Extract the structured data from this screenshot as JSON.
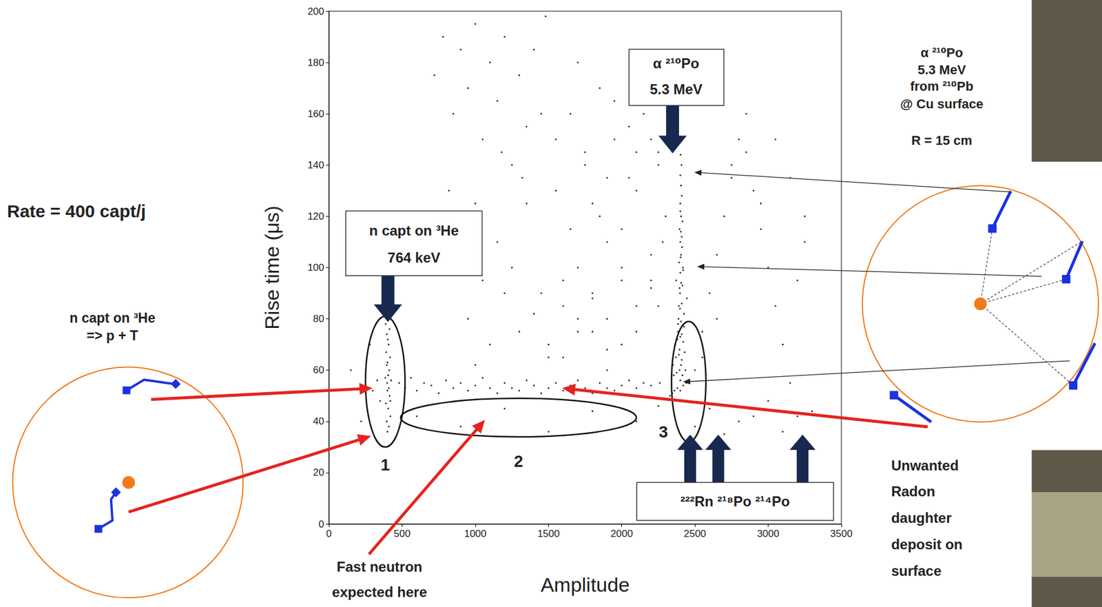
{
  "chart_data": {
    "type": "scatter",
    "x_label": "Amplitude",
    "y_label": "Rise time (μs)",
    "xlim": [
      0,
      3500
    ],
    "xticks": [
      0,
      500,
      1000,
      1500,
      2000,
      2500,
      3000,
      3500
    ],
    "ylim": [
      0,
      200
    ],
    "yticks": [
      0,
      20,
      40,
      60,
      80,
      100,
      120,
      140,
      160,
      180,
      200
    ],
    "grid": false,
    "color": "#000000",
    "marker": "dot",
    "x": [
      400,
      410,
      395,
      420,
      405,
      390,
      415,
      400,
      410,
      398,
      425,
      385,
      405,
      412,
      395,
      400,
      418,
      392,
      408,
      402,
      396,
      414,
      388,
      420,
      250,
      300,
      330,
      480,
      520,
      560,
      600,
      650,
      700,
      750,
      800,
      850,
      900,
      950,
      1000,
      1050,
      1100,
      1150,
      1200,
      1250,
      1300,
      1350,
      1400,
      1450,
      1500,
      1550,
      1600,
      1650,
      1700,
      1750,
      1800,
      1850,
      1900,
      1950,
      2000,
      2050,
      2100,
      2150,
      2200,
      2260,
      2330,
      2345,
      2360,
      2380,
      2400,
      2420,
      2440,
      2355,
      2375,
      2395,
      2415,
      2435,
      2370,
      2390,
      2410,
      2430,
      2380,
      2400,
      2420,
      2385,
      2405,
      2425,
      2390,
      2410,
      2395,
      2415,
      2400,
      2420,
      2405,
      2400,
      2410,
      2395,
      2415,
      2405,
      2400,
      2410,
      2405,
      2400,
      2408,
      2402,
      2350,
      2365,
      2385,
      2425,
      2445,
      2372,
      2392,
      2412,
      2388,
      2398,
      2418,
      2395,
      2405,
      2400,
      2410,
      2398,
      2406,
      2402,
      2404,
      2400,
      950,
      1050,
      1150,
      1250,
      1350,
      1450,
      1550,
      1650,
      1750,
      1850,
      1950,
      2050,
      2150,
      2250,
      1500,
      1600,
      1700,
      1800,
      1900,
      2000,
      2100,
      2200,
      2300,
      1550,
      1650,
      1750,
      1850,
      1950,
      2050,
      2150,
      2250,
      1600,
      1700,
      1800,
      1900,
      2000,
      2100,
      2200,
      1700,
      1800,
      1900,
      2000,
      2100,
      2200,
      2500,
      2550,
      2600,
      2650,
      2700,
      2750,
      2800,
      2850,
      2900,
      2950,
      3000,
      3050,
      3100,
      3150,
      3200,
      3250,
      2550,
      2650,
      2750,
      2850,
      2950,
      3050,
      3150,
      3250,
      2600,
      2800,
      3000,
      3200,
      720,
      780,
      850,
      900,
      950,
      1000,
      1050,
      1100,
      1150,
      1200,
      1250,
      1300,
      1350,
      1400,
      1450,
      820,
      1000,
      1180,
      1320,
      1480,
      220,
      280,
      600,
      900,
      1200,
      1500,
      1800,
      2100,
      2250,
      2500,
      2700,
      2900,
      3100,
      3300,
      150,
      350,
      1100,
      1300,
      1500,
      1700,
      1900,
      2100,
      2250,
      1200,
      1400,
      1600,
      1800,
      2000,
      2200,
      2280,
      1000,
      1900
    ],
    "values": [
      36,
      38,
      40,
      42,
      45,
      47,
      50,
      52,
      53,
      55,
      56,
      57,
      58,
      60,
      62,
      63,
      65,
      67,
      70,
      72,
      74,
      76,
      78,
      48,
      54,
      52,
      56,
      55,
      53,
      57,
      52,
      55,
      54,
      51,
      56,
      53,
      55,
      52,
      54,
      57,
      53,
      51,
      55,
      53,
      52,
      56,
      54,
      51,
      53,
      55,
      52,
      54,
      56,
      53,
      51,
      55,
      53,
      52,
      54,
      56,
      53,
      55,
      54,
      55,
      50,
      51,
      52,
      53,
      52,
      54,
      55,
      58,
      59,
      60,
      58,
      60,
      65,
      66,
      64,
      67,
      72,
      73,
      71,
      78,
      79,
      77,
      85,
      86,
      92,
      93,
      98,
      99,
      105,
      110,
      112,
      115,
      118,
      120,
      125,
      128,
      132,
      136,
      140,
      144,
      62,
      70,
      75,
      82,
      88,
      95,
      102,
      108,
      80,
      90,
      100,
      68,
      62,
      56,
      74,
      84,
      94,
      104,
      114,
      122,
      80,
      95,
      110,
      100,
      125,
      90,
      130,
      115,
      140,
      120,
      150,
      135,
      160,
      145,
      70,
      85,
      100,
      75,
      110,
      95,
      130,
      105,
      120,
      150,
      160,
      145,
      170,
      165,
      155,
      175,
      140,
      65,
      75,
      90,
      80,
      70,
      85,
      95,
      180,
      125,
      135,
      115,
      145,
      150,
      60,
      75,
      90,
      105,
      120,
      135,
      150,
      145,
      130,
      115,
      100,
      85,
      70,
      55,
      95,
      110,
      65,
      80,
      140,
      160,
      125,
      150,
      135,
      120,
      45,
      40,
      48,
      42,
      175,
      190,
      160,
      185,
      170,
      195,
      150,
      180,
      165,
      190,
      140,
      175,
      155,
      185,
      160,
      130,
      125,
      145,
      135,
      198,
      40,
      70,
      42,
      38,
      45,
      36,
      44,
      40,
      46,
      38,
      35,
      42,
      36,
      44,
      60,
      48,
      70,
      75,
      65,
      80,
      68,
      75,
      85,
      90,
      82,
      95,
      88,
      100,
      92,
      110,
      62,
      60
    ],
    "annotations": {
      "po210_box": [
        "α ²¹⁰Po",
        "5.3 MeV"
      ],
      "ncapt_box": [
        "n capt on ³He",
        "764 keV"
      ],
      "radon_box": "²²²Rn ²¹⁸Po ²¹⁴Po"
    },
    "regions": [
      {
        "label": "1",
        "x": [
          250,
          520
        ],
        "y": [
          30,
          81
        ]
      },
      {
        "label": "2",
        "x": [
          490,
          2100
        ],
        "y": [
          34,
          49
        ]
      },
      {
        "label": "3",
        "x": [
          2340,
          2575
        ],
        "y": [
          32,
          79
        ]
      }
    ]
  },
  "slide": {
    "rate": "Rate = 400 capt/j",
    "left_diagram": [
      "n capt on ³He",
      "=>  p + T"
    ],
    "right_note": [
      "α ²¹⁰Po",
      "5.3 MeV",
      "from ²¹⁰Pb",
      "@ Cu surface",
      "R = 15 cm"
    ],
    "radon_note": [
      "Unwanted",
      "Radon",
      "daughter",
      "deposit on",
      "surface"
    ],
    "fast_neutron": [
      "Fast neutron",
      "expected here"
    ]
  }
}
